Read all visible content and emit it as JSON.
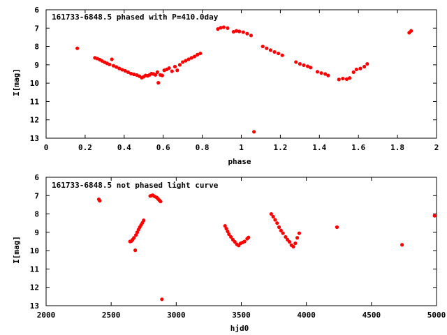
{
  "chart_data": [
    {
      "type": "scatter",
      "title": "161733-6848.5 phased with P=410.0day",
      "xlabel": "phase",
      "ylabel": "I[mag]",
      "xlim": [
        0,
        2
      ],
      "ylim": [
        6,
        13
      ],
      "y_inverted": true,
      "xticks": [
        0,
        0.2,
        0.4,
        0.6,
        0.8,
        1,
        1.2,
        1.4,
        1.6,
        1.8,
        2
      ],
      "yticks": [
        6,
        7,
        8,
        9,
        10,
        11,
        12,
        13
      ],
      "xtick_labels": [
        "0",
        "0.2",
        "0.4",
        "0.6",
        "0.8",
        "1",
        "1.2",
        "1.4",
        "1.6",
        "1.8",
        "2"
      ],
      "ytick_labels": [
        "6",
        "7",
        "8",
        "9",
        "10",
        "11",
        "12",
        "13"
      ],
      "grid": false,
      "color": "#ff0000",
      "points": [
        [
          0.16,
          8.1
        ],
        [
          0.25,
          8.62
        ],
        [
          0.262,
          8.66
        ],
        [
          0.275,
          8.72
        ],
        [
          0.287,
          8.79
        ],
        [
          0.3,
          8.86
        ],
        [
          0.312,
          8.92
        ],
        [
          0.325,
          8.98
        ],
        [
          0.337,
          8.7
        ],
        [
          0.345,
          9.05
        ],
        [
          0.36,
          9.12
        ],
        [
          0.375,
          9.2
        ],
        [
          0.39,
          9.27
        ],
        [
          0.405,
          9.33
        ],
        [
          0.42,
          9.4
        ],
        [
          0.435,
          9.48
        ],
        [
          0.45,
          9.52
        ],
        [
          0.465,
          9.56
        ],
        [
          0.478,
          9.62
        ],
        [
          0.49,
          9.7
        ],
        [
          0.5,
          9.65
        ],
        [
          0.51,
          9.58
        ],
        [
          0.52,
          9.6
        ],
        [
          0.53,
          9.55
        ],
        [
          0.54,
          9.48
        ],
        [
          0.55,
          9.5
        ],
        [
          0.56,
          9.55
        ],
        [
          0.57,
          9.4
        ],
        [
          0.575,
          9.98
        ],
        [
          0.585,
          9.55
        ],
        [
          0.595,
          9.58
        ],
        [
          0.605,
          9.3
        ],
        [
          0.618,
          9.25
        ],
        [
          0.63,
          9.18
        ],
        [
          0.645,
          9.35
        ],
        [
          0.66,
          9.1
        ],
        [
          0.672,
          9.3
        ],
        [
          0.685,
          9.0
        ],
        [
          0.7,
          8.85
        ],
        [
          0.715,
          8.78
        ],
        [
          0.73,
          8.7
        ],
        [
          0.745,
          8.62
        ],
        [
          0.76,
          8.55
        ],
        [
          0.775,
          8.45
        ],
        [
          0.79,
          8.38
        ],
        [
          0.88,
          7.05
        ],
        [
          0.895,
          6.98
        ],
        [
          0.91,
          6.95
        ],
        [
          0.93,
          7.0
        ],
        [
          0.96,
          7.2
        ],
        [
          0.975,
          7.15
        ],
        [
          0.99,
          7.18
        ],
        [
          1.01,
          7.22
        ],
        [
          1.03,
          7.3
        ],
        [
          1.05,
          7.4
        ],
        [
          1.065,
          12.65
        ],
        [
          1.11,
          8.0
        ],
        [
          1.13,
          8.1
        ],
        [
          1.15,
          8.2
        ],
        [
          1.17,
          8.3
        ],
        [
          1.19,
          8.38
        ],
        [
          1.21,
          8.48
        ],
        [
          1.28,
          8.85
        ],
        [
          1.3,
          8.95
        ],
        [
          1.32,
          9.02
        ],
        [
          1.34,
          9.08
        ],
        [
          1.355,
          9.15
        ],
        [
          1.39,
          9.38
        ],
        [
          1.41,
          9.45
        ],
        [
          1.43,
          9.5
        ],
        [
          1.445,
          9.58
        ],
        [
          1.5,
          9.8
        ],
        [
          1.52,
          9.75
        ],
        [
          1.54,
          9.78
        ],
        [
          1.555,
          9.72
        ],
        [
          1.575,
          9.4
        ],
        [
          1.59,
          9.25
        ],
        [
          1.61,
          9.2
        ],
        [
          1.63,
          9.1
        ],
        [
          1.645,
          8.95
        ],
        [
          1.86,
          7.25
        ],
        [
          1.87,
          7.15
        ]
      ]
    },
    {
      "type": "scatter",
      "title": "161733-6848.5 not phased light curve",
      "xlabel": "hjd0",
      "ylabel": "I[mag]",
      "xlim": [
        2000,
        5000
      ],
      "ylim": [
        6,
        13
      ],
      "y_inverted": true,
      "xticks": [
        2000,
        2500,
        3000,
        3500,
        4000,
        4500,
        5000
      ],
      "yticks": [
        6,
        7,
        8,
        9,
        10,
        11,
        12,
        13
      ],
      "xtick_labels": [
        "2000",
        "2500",
        "3000",
        "3500",
        "4000",
        "4500",
        "5000"
      ],
      "ytick_labels": [
        "6",
        "7",
        "8",
        "9",
        "10",
        "11",
        "12",
        "13"
      ],
      "grid": false,
      "color": "#ff0000",
      "points": [
        [
          2405,
          7.2
        ],
        [
          2412,
          7.28
        ],
        [
          2645,
          9.5
        ],
        [
          2655,
          9.48
        ],
        [
          2665,
          9.4
        ],
        [
          2675,
          9.3
        ],
        [
          2685,
          9.98
        ],
        [
          2690,
          9.15
        ],
        [
          2700,
          9.0
        ],
        [
          2710,
          8.85
        ],
        [
          2720,
          8.72
        ],
        [
          2730,
          8.6
        ],
        [
          2740,
          8.48
        ],
        [
          2750,
          8.35
        ],
        [
          2800,
          7.02
        ],
        [
          2810,
          7.0
        ],
        [
          2820,
          6.98
        ],
        [
          2835,
          7.05
        ],
        [
          2850,
          7.1
        ],
        [
          2860,
          7.18
        ],
        [
          2870,
          7.25
        ],
        [
          2880,
          7.32
        ],
        [
          2890,
          12.65
        ],
        [
          3375,
          8.65
        ],
        [
          3385,
          8.8
        ],
        [
          3395,
          8.95
        ],
        [
          3405,
          9.1
        ],
        [
          3420,
          9.25
        ],
        [
          3435,
          9.4
        ],
        [
          3450,
          9.52
        ],
        [
          3465,
          9.65
        ],
        [
          3480,
          9.72
        ],
        [
          3495,
          9.6
        ],
        [
          3510,
          9.55
        ],
        [
          3525,
          9.5
        ],
        [
          3545,
          9.35
        ],
        [
          3555,
          9.28
        ],
        [
          3730,
          8.0
        ],
        [
          3745,
          8.15
        ],
        [
          3760,
          8.32
        ],
        [
          3775,
          8.5
        ],
        [
          3790,
          8.72
        ],
        [
          3805,
          8.9
        ],
        [
          3820,
          9.05
        ],
        [
          3840,
          9.25
        ],
        [
          3855,
          9.4
        ],
        [
          3870,
          9.52
        ],
        [
          3885,
          9.7
        ],
        [
          3900,
          9.78
        ],
        [
          3915,
          9.6
        ],
        [
          3930,
          9.3
        ],
        [
          3945,
          9.05
        ],
        [
          4235,
          8.72
        ],
        [
          4735,
          9.68
        ],
        [
          4985,
          8.1
        ]
      ]
    }
  ]
}
